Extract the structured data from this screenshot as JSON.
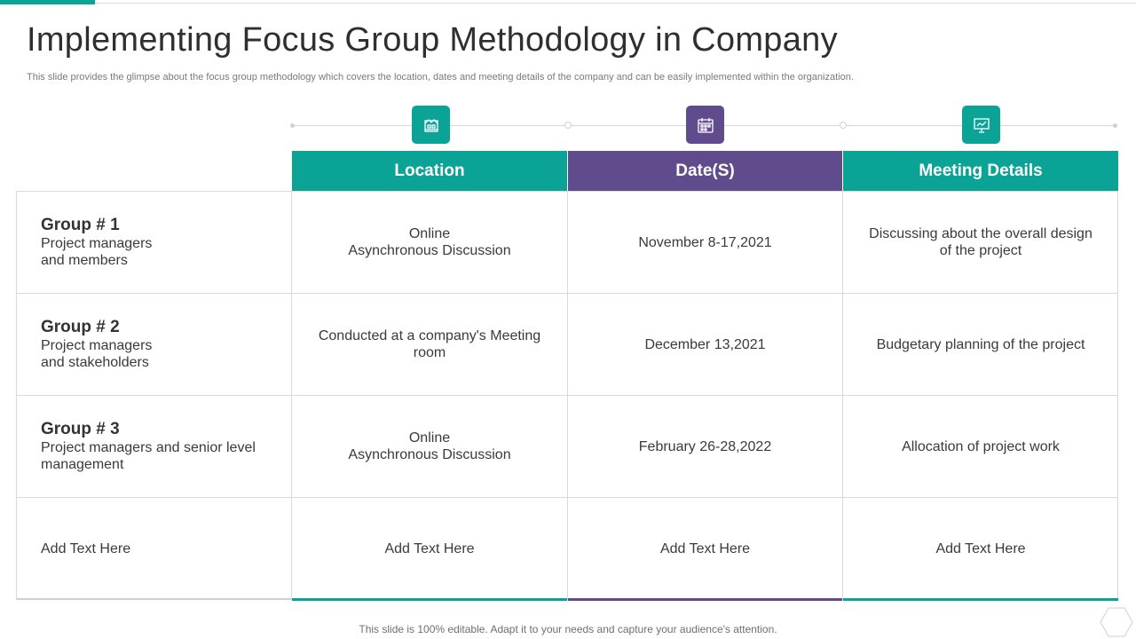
{
  "slide": {
    "title": "Implementing Focus Group Methodology in Company",
    "subtitle": "This slide provides the glimpse about the focus group methodology which covers the location, dates and meeting details of the company and can be easily implemented within the organization.",
    "footer": "This slide is 100% editable. Adapt it to your needs and capture your audience's attention."
  },
  "colors": {
    "teal": "#0aa396",
    "purple": "#604b8c"
  },
  "icons": [
    "location-icon",
    "calendar-icon",
    "presentation-icon",
    "hexagon-icon"
  ],
  "table": {
    "headers": [
      "Location",
      "Date(S)",
      "Meeting Details"
    ],
    "rows": [
      {
        "group": "Group # 1",
        "desc": "Project managers\nand members",
        "location": "Online\nAsynchronous  Discussion",
        "date": "November 8-17,2021",
        "details": "Discussing about the overall design\nof the project"
      },
      {
        "group": "Group # 2",
        "desc": "Project managers\nand stakeholders",
        "location": "Conducted at a company's Meeting\nroom",
        "date": "December 13,2021",
        "details": "Budgetary planning  of the project"
      },
      {
        "group": "Group # 3",
        "desc": "Project managers and senior level\nmanagement",
        "location": "Online\nAsynchronous  Discussion",
        "date": "February 26-28,2022",
        "details": "Allocation of project work"
      },
      {
        "group": "",
        "desc": "Add Text Here",
        "location": "Add Text Here",
        "date": "Add Text Here",
        "details": "Add Text Here"
      }
    ]
  }
}
